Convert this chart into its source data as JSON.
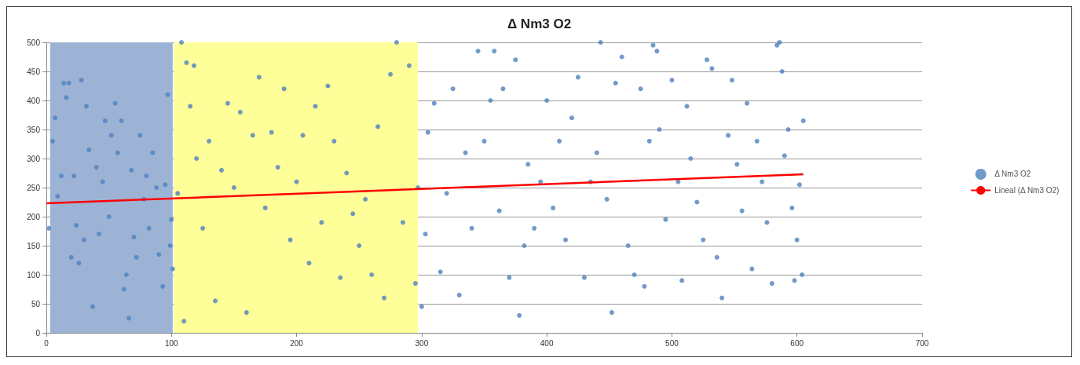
{
  "chart_data": {
    "type": "scatter",
    "title": "Δ Nm3 O2",
    "xlim": [
      0,
      700
    ],
    "xticks": [
      0,
      100,
      200,
      300,
      400,
      500,
      600,
      700
    ],
    "ylim": [
      0,
      500
    ],
    "yticks": [
      0,
      50,
      100,
      150,
      200,
      250,
      300,
      350,
      400,
      450,
      500
    ],
    "grid": "y",
    "legend": "right",
    "marker": "circle",
    "bands": [
      {
        "axis": "x",
        "from": 3,
        "to": 101,
        "color": "#9db3d6"
      },
      {
        "axis": "x",
        "from": 102,
        "to": 297,
        "color": "#ffff99"
      }
    ],
    "series": [
      {
        "name": "Δ Nm3 O2",
        "color": "#4f81bd",
        "x": [
          2,
          5,
          7,
          9,
          12,
          14,
          16,
          18,
          20,
          22,
          24,
          26,
          28,
          30,
          32,
          34,
          37,
          40,
          42,
          45,
          47,
          50,
          52,
          55,
          57,
          60,
          62,
          64,
          66,
          68,
          70,
          72,
          75,
          78,
          80,
          82,
          85,
          88,
          90,
          93,
          95,
          97,
          99,
          100,
          101,
          105,
          108,
          110,
          112,
          115,
          118,
          120,
          125,
          130,
          135,
          140,
          145,
          150,
          155,
          160,
          165,
          170,
          175,
          180,
          185,
          190,
          195,
          200,
          205,
          210,
          215,
          220,
          225,
          230,
          235,
          240,
          245,
          250,
          255,
          260,
          265,
          270,
          275,
          280,
          285,
          290,
          295,
          297,
          300,
          303,
          305,
          310,
          315,
          320,
          325,
          330,
          335,
          340,
          345,
          350,
          355,
          358,
          362,
          365,
          370,
          375,
          378,
          382,
          385,
          390,
          395,
          400,
          405,
          410,
          415,
          420,
          425,
          430,
          435,
          440,
          443,
          448,
          452,
          455,
          460,
          465,
          470,
          475,
          478,
          482,
          485,
          488,
          490,
          495,
          500,
          505,
          508,
          512,
          515,
          520,
          525,
          528,
          532,
          536,
          540,
          545,
          548,
          552,
          556,
          560,
          564,
          568,
          572,
          576,
          580,
          584,
          586,
          588,
          590,
          593,
          596,
          598,
          600,
          602,
          605,
          604
        ],
        "values": [
          180,
          330,
          370,
          235,
          270,
          430,
          405,
          430,
          130,
          270,
          185,
          120,
          435,
          160,
          390,
          315,
          45,
          285,
          170,
          260,
          365,
          200,
          340,
          395,
          310,
          365,
          75,
          100,
          25,
          280,
          165,
          130,
          340,
          230,
          270,
          180,
          310,
          250,
          135,
          80,
          255,
          410,
          150,
          195,
          110,
          240,
          500,
          20,
          465,
          390,
          460,
          300,
          180,
          330,
          55,
          280,
          395,
          250,
          380,
          35,
          340,
          440,
          215,
          345,
          285,
          420,
          160,
          260,
          340,
          120,
          390,
          190,
          425,
          330,
          95,
          275,
          205,
          150,
          230,
          100,
          355,
          60,
          445,
          500,
          190,
          460,
          85,
          250,
          45,
          170,
          345,
          395,
          105,
          240,
          420,
          65,
          310,
          180,
          485,
          330,
          400,
          485,
          210,
          420,
          95,
          470,
          30,
          150,
          290,
          180,
          260,
          400,
          215,
          330,
          160,
          370,
          440,
          95,
          260,
          310,
          500,
          230,
          35,
          430,
          475,
          150,
          100,
          420,
          80,
          330,
          495,
          485,
          350,
          195,
          435,
          260,
          90,
          390,
          300,
          225,
          160,
          470,
          455,
          130,
          60,
          340,
          435,
          290,
          210,
          395,
          110,
          330,
          260,
          190,
          85,
          495,
          500,
          450,
          305,
          350,
          215,
          90,
          160,
          255,
          365,
          100
        ]
      },
      {
        "name": "Lineal (Δ Nm3 O2)",
        "type": "line",
        "color": "#ff0000",
        "marker": "none",
        "x": [
          0,
          605
        ],
        "values": [
          223,
          273
        ]
      }
    ]
  }
}
